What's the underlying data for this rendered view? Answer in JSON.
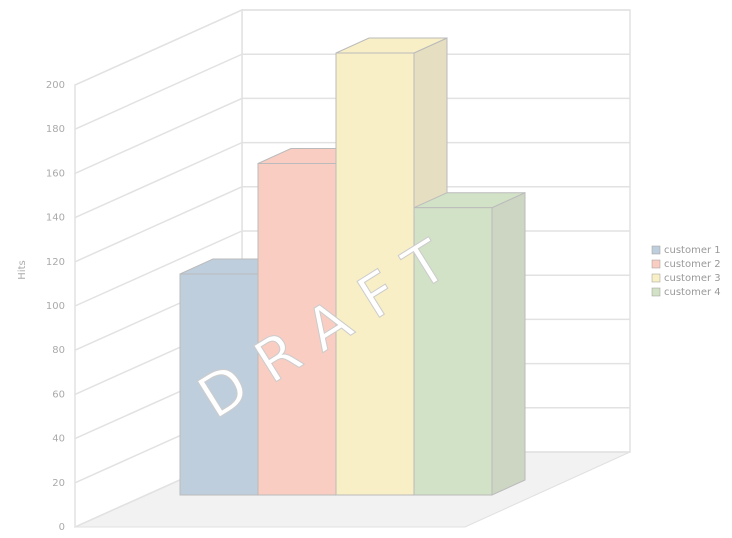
{
  "chart_data": {
    "type": "bar3d",
    "y_label": "Hits",
    "categories": [
      "customer 1",
      "customer 2",
      "customer 3",
      "customer 4"
    ],
    "values": [
      100,
      150,
      200,
      130
    ],
    "colors": [
      "#bfcedd",
      "#f9cdc2",
      "#f8efc6",
      "#d2e2c6"
    ],
    "side_colors": [
      "#aebccb",
      "#e3bcb2",
      "#e6dec0",
      "#ccd6c3"
    ],
    "ylim": [
      0,
      200
    ],
    "yticks": [
      0,
      20,
      40,
      60,
      80,
      100,
      120,
      140,
      160,
      180,
      200
    ],
    "grid": true,
    "legend": "right",
    "watermark": "DRAFT"
  }
}
